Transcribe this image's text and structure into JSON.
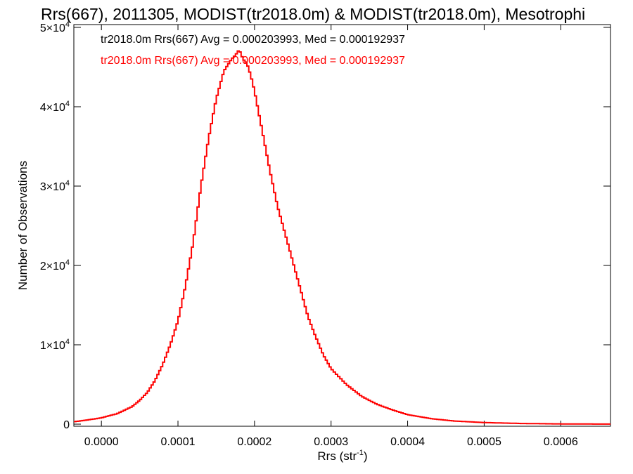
{
  "chart_data": {
    "type": "line",
    "title": "Rrs(667), 2011305, MODIST(tr2018.0m) & MODIST(tr2018.0m), Mesotrophi",
    "xlabel": "Rrs (str",
    "xlabel_sup": "-1",
    "xlabel_suffix": ")",
    "ylabel": "Number of Observations",
    "xlim": [
      -3.6e-05,
      0.000665
    ],
    "ylim": [
      0,
      50000
    ],
    "x_ticks": [
      {
        "value": 0.0,
        "label": "0.0000"
      },
      {
        "value": 0.0001,
        "label": "0.0001"
      },
      {
        "value": 0.0002,
        "label": "0.0002"
      },
      {
        "value": 0.0003,
        "label": "0.0003"
      },
      {
        "value": 0.0004,
        "label": "0.0004"
      },
      {
        "value": 0.0005,
        "label": "0.0005"
      },
      {
        "value": 0.0006,
        "label": "0.0006"
      }
    ],
    "y_ticks": [
      {
        "value": 0,
        "label": "0",
        "mantissa": "",
        "exponent": ""
      },
      {
        "value": 10000,
        "label": "",
        "mantissa": "1×10",
        "exponent": "4"
      },
      {
        "value": 20000,
        "label": "",
        "mantissa": "2×10",
        "exponent": "4"
      },
      {
        "value": 30000,
        "label": "",
        "mantissa": "3×10",
        "exponent": "4"
      },
      {
        "value": 40000,
        "label": "",
        "mantissa": "4×10",
        "exponent": "4"
      },
      {
        "value": 50000,
        "label": "",
        "mantissa": "5×10",
        "exponent": "4"
      }
    ],
    "legend": [
      {
        "text": "tr2018.0m Rrs(667) Avg = 0.000203993, Med = 0.000192937",
        "color": "#000000"
      },
      {
        "text": "tr2018.0m Rrs(667) Avg = 0.000203993, Med = 0.000192937",
        "color": "#ff0000"
      }
    ],
    "legend_position": "top-left",
    "series": [
      {
        "color": "#ff0000",
        "x": [
          -3.6e-05,
          -2e-05,
          0.0,
          2e-05,
          4e-05,
          5e-05,
          6e-05,
          7e-05,
          8e-05,
          9e-05,
          0.0001,
          0.00011,
          0.00012,
          0.00013,
          0.00014,
          0.00015,
          0.00016,
          0.00017,
          0.000175,
          0.00018,
          0.000185,
          0.00019,
          0.000195,
          0.0002,
          0.00021,
          0.00022,
          0.00023,
          0.00024,
          0.00025,
          0.00026,
          0.00027,
          0.00028,
          0.00029,
          0.0003,
          0.00032,
          0.00034,
          0.00036,
          0.00038,
          0.0004,
          0.00043,
          0.00046,
          0.0005,
          0.00055,
          0.0006,
          0.00065,
          0.000665
        ],
        "y": [
          300,
          500,
          800,
          1300,
          2200,
          3000,
          4000,
          5500,
          7500,
          10000,
          13000,
          17500,
          23000,
          30000,
          36000,
          41000,
          44500,
          46000,
          46500,
          47200,
          46000,
          45500,
          44000,
          42000,
          37000,
          32000,
          27500,
          24000,
          20500,
          17000,
          13500,
          11000,
          8700,
          7000,
          5000,
          3500,
          2500,
          1800,
          1200,
          700,
          400,
          200,
          80,
          30,
          10,
          5
        ]
      }
    ]
  }
}
